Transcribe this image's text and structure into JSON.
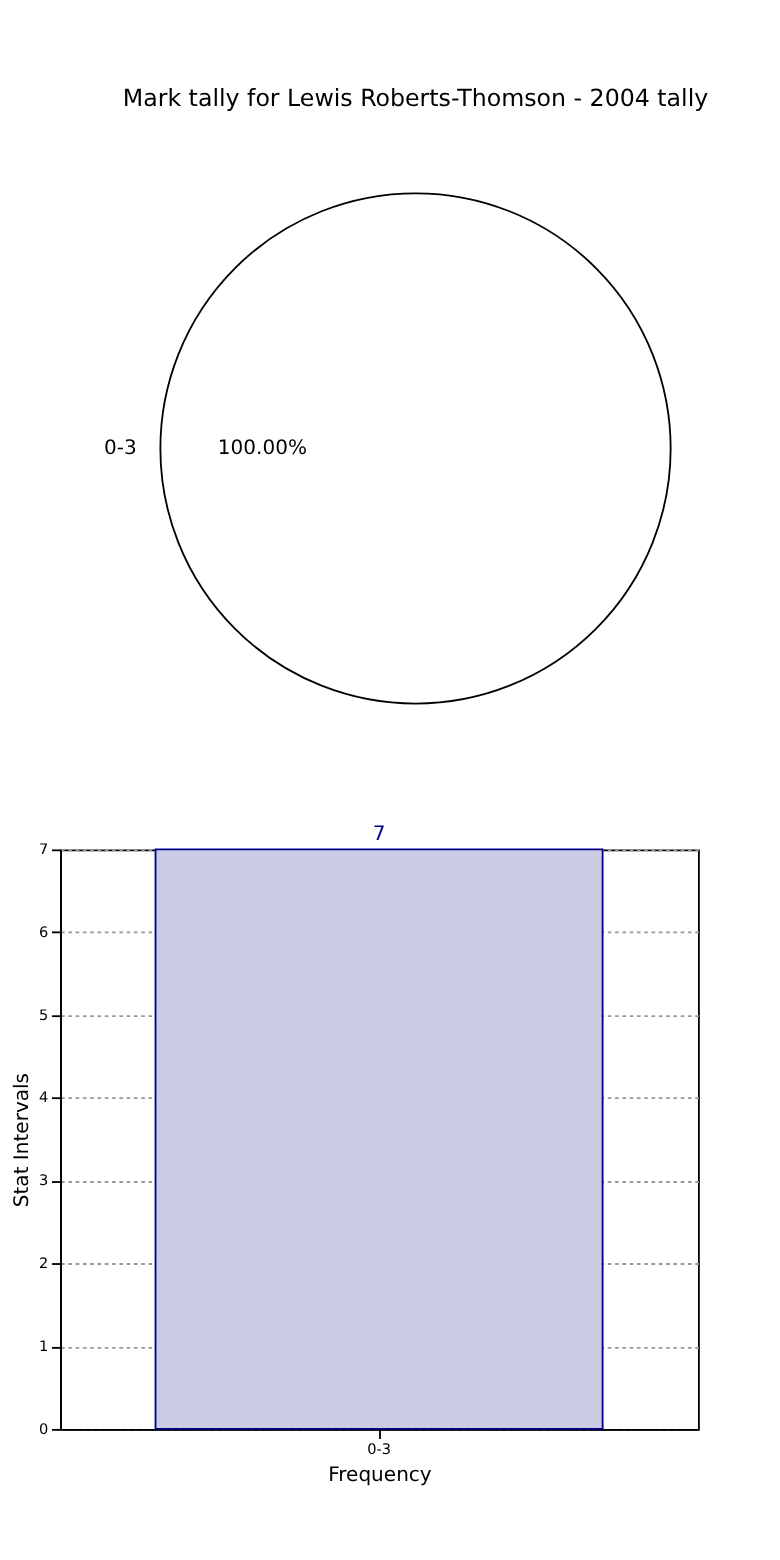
{
  "chart_data": [
    {
      "type": "pie",
      "title": "Mark tally for Lewis Roberts-Thomson - 2004 tally",
      "categories": [
        "0-3"
      ],
      "values": [
        100
      ],
      "colors": [
        "#ffffff"
      ],
      "value_labels": [
        "100.00%"
      ]
    },
    {
      "type": "bar",
      "categories": [
        "0-3"
      ],
      "values": [
        7
      ],
      "color": "#cbcbe3",
      "xlabel": "Frequency",
      "ylabel": "Stat Intervals",
      "ylim": [
        0,
        7
      ],
      "yticks": [
        0,
        1,
        2,
        3,
        4,
        5,
        6,
        7
      ],
      "grid": true,
      "data_labels": true
    }
  ]
}
